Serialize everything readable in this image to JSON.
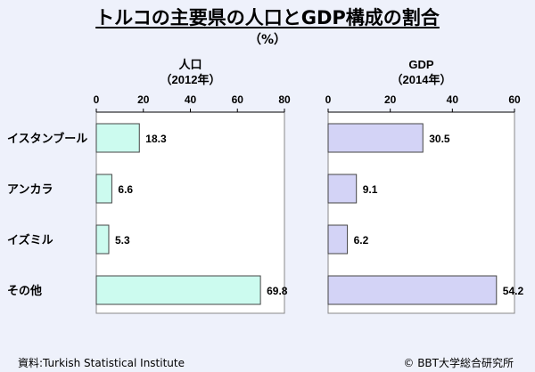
{
  "title": "トルコの主要県の人口とGDP構成の割合",
  "unit_label": "（%）",
  "source": "資料:Turkish Statistical Institute",
  "copyright": "© BBT大学総合研究所",
  "chart_data": [
    {
      "type": "bar",
      "orientation": "horizontal",
      "title": "人口",
      "subtitle": "（2012年）",
      "categories": [
        "イスタンブール",
        "アンカラ",
        "イズミル",
        "その他"
      ],
      "values": [
        18.3,
        6.6,
        5.3,
        69.8
      ],
      "xlim": [
        0,
        80
      ],
      "ticks": [
        "0",
        "20",
        "40",
        "60",
        "80"
      ],
      "bar_color": "#ccfbef"
    },
    {
      "type": "bar",
      "orientation": "horizontal",
      "title": "GDP",
      "subtitle": "（2014年）",
      "categories": [
        "イスタンブール",
        "アンカラ",
        "イズミル",
        "その他"
      ],
      "values": [
        30.5,
        9.1,
        6.2,
        54.2
      ],
      "xlim": [
        0,
        60
      ],
      "ticks": [
        "0",
        "20",
        "40",
        "60"
      ],
      "bar_color": "#d3d3f6"
    }
  ]
}
